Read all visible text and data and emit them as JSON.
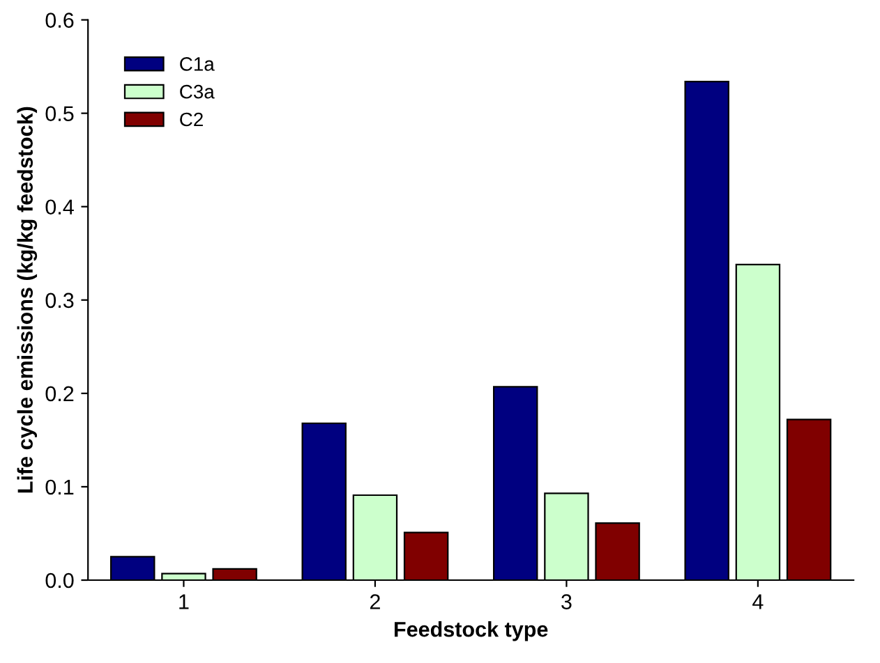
{
  "chart_data": {
    "type": "bar",
    "xlabel": "Feedstock type",
    "ylabel": "Life cycle emissions (kg/kg feedstock)",
    "categories": [
      "1",
      "2",
      "3",
      "4"
    ],
    "series": [
      {
        "name": "C1a",
        "color": "#000080",
        "values": [
          0.025,
          0.168,
          0.207,
          0.534
        ]
      },
      {
        "name": "C3a",
        "color": "#ccffcc",
        "values": [
          0.007,
          0.091,
          0.093,
          0.338
        ]
      },
      {
        "name": "C2",
        "color": "#800000",
        "values": [
          0.012,
          0.051,
          0.061,
          0.172
        ]
      }
    ],
    "ylim": [
      0,
      0.6
    ],
    "yticks": [
      {
        "value": 0,
        "label": "0.0"
      },
      {
        "value": 0.1,
        "label": "0.1"
      },
      {
        "value": 0.2,
        "label": "0.2"
      },
      {
        "value": 0.3,
        "label": "0.3"
      },
      {
        "value": 0.4,
        "label": "0.4"
      },
      {
        "value": 0.5,
        "label": "0.5"
      },
      {
        "value": 0.6,
        "label": "0.6"
      }
    ],
    "grid": false,
    "legend": "top left"
  }
}
